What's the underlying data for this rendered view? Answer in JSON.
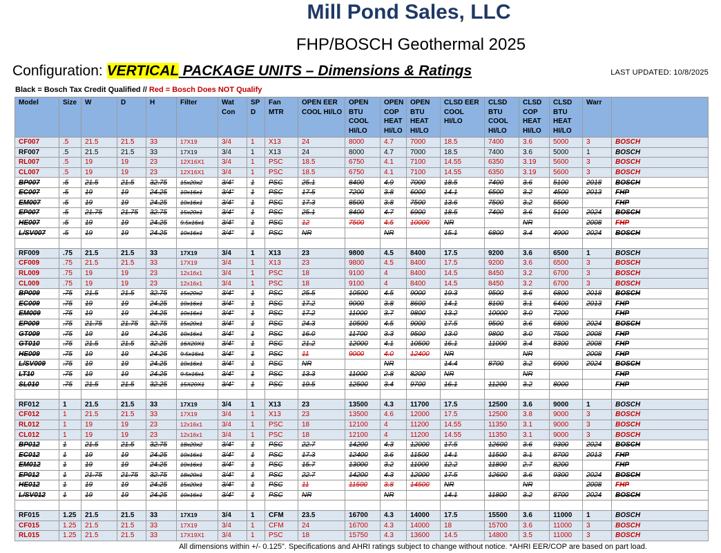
{
  "header": {
    "company": "Mill Pond Sales, LLC",
    "subtitle": "FHP/BOSCH Geothermal 2025",
    "config_prefix": "Configuration: ",
    "config_highlight": "VERTICAL",
    "config_suffix": " PACKAGE UNITS – Dimensions & Ratings",
    "last_updated": "LAST UPDATED: 10/8/2025",
    "legend_black": "Black = Bosch Tax Credit Qualified // ",
    "legend_red": "Red = Bosch Does NOT Qualify"
  },
  "columns": [
    "Model",
    "Size",
    "W",
    "D",
    "H",
    "Filter",
    "Wat Con",
    "SP D",
    "Fan MTR",
    "OPEN EER COOL HI/LO",
    "OPEN BTU COOL HI/LO",
    "OPEN COP HEAT HI/LO",
    "OPEN BTU HEAT HI/LO",
    "CLSD EER COOL HI/LO",
    "CLSD BTU COOL HI/LO",
    "CLSD COP HEAT HI/LO",
    "CLSD BTU HEAT HI/LO",
    "Warr",
    ""
  ],
  "rows": [
    {
      "style": "blue red",
      "cells": [
        "CF007",
        ".5",
        "21.5",
        "21.5",
        "33",
        "17X19",
        "3/4",
        "1",
        "X13",
        "24",
        "8000",
        "4.7",
        "7000",
        "18.5",
        "7400",
        "3.6",
        "5000",
        "3",
        "BOSCH"
      ]
    },
    {
      "style": "blue",
      "cells": [
        "RF007",
        ".5",
        "21.5",
        "21.5",
        "33",
        "17X19",
        "3/4",
        "1",
        "X13",
        "24",
        "8000",
        "4.7",
        "7000",
        "18.5",
        "7400",
        "3.6",
        "5000",
        "1",
        "BOSCH"
      ]
    },
    {
      "style": "blue red",
      "cells": [
        "RL007",
        ".5",
        "19",
        "19",
        "23",
        "12X16X1",
        "3/4",
        "1",
        "PSC",
        "18.5",
        "6750",
        "4.1",
        "7100",
        "14.55",
        "6350",
        "3.19",
        "5600",
        "3",
        "BOSCH"
      ]
    },
    {
      "style": "blue red",
      "cells": [
        "CL007",
        ".5",
        "19",
        "19",
        "23",
        "12X16X1",
        "3/4",
        "1",
        "PSC",
        "18.5",
        "6750",
        "4.1",
        "7100",
        "14.55",
        "6350",
        "3.19",
        "5600",
        "3",
        "BOSCH"
      ]
    },
    {
      "style": "strike",
      "cells": [
        "BP007",
        ".5",
        "21.5",
        "21.5",
        "32.75",
        "15x20x2",
        "3/4\"",
        "1",
        "PSC",
        "25.1",
        "8400",
        "4.9",
        "7000",
        "18.5",
        "7400",
        "3.6",
        "5100",
        "2018",
        "BOSCH"
      ]
    },
    {
      "style": "strike",
      "cells": [
        "EC007",
        ".5",
        "19",
        "19",
        "24.25",
        "10x16x1",
        "3/4\"",
        "1",
        "PSC",
        "17.5",
        "7200",
        "3.8",
        "6000",
        "14.1",
        "6500",
        "3.2",
        "4500",
        "2013",
        "FHP"
      ]
    },
    {
      "style": "strike",
      "cells": [
        "EM007",
        ".5",
        "19",
        "19",
        "24.25",
        "10x16x1",
        "3/4\"",
        "1",
        "PSC",
        "17.3",
        "8500",
        "3.8",
        "7500",
        "13.6",
        "7500",
        "3.2",
        "5500",
        "",
        "FHP"
      ]
    },
    {
      "style": "strike",
      "cells": [
        "EP007",
        ".5",
        "21.75",
        "21.75",
        "32.75",
        "15x20x1",
        "3/4\"",
        "1",
        "PSC",
        "25.1",
        "8400",
        "4.7",
        "6900",
        "18.5",
        "7400",
        "3.6",
        "5100",
        "2024",
        "BOSCH"
      ]
    },
    {
      "style": "strike",
      "red": [
        9,
        10,
        11,
        12,
        18
      ],
      "cells": [
        "HE007",
        ".5",
        "19",
        "19",
        "24.25",
        "9.5x16x1",
        "3/4\"",
        "1",
        "PSC",
        "12",
        "7500",
        "4.5",
        "10000",
        "NR",
        "",
        "NR",
        "",
        "2008",
        "FHP"
      ]
    },
    {
      "style": "strike",
      "cells": [
        "L/SV007",
        ".5",
        "19",
        "19",
        "24.25",
        "10x16x1",
        "3/4\"",
        "1",
        "PSC",
        "NR",
        "",
        "NR",
        "",
        "15.1",
        "6800",
        "3.4",
        "4900",
        "2024",
        "BOSCH"
      ]
    },
    {
      "style": "blank",
      "cells": [
        "",
        "",
        "",
        "",
        "",
        "",
        "",
        "",
        "",
        "",
        "",
        "",
        "",
        "",
        "",
        "",
        "",
        "",
        ""
      ]
    },
    {
      "style": "blue bold",
      "cells": [
        "RF009",
        ".75",
        "21.5",
        "21.5",
        "33",
        "17X19",
        "3/4",
        "1",
        "X13",
        "23",
        "9800",
        "4.5",
        "8400",
        "17.5",
        "9200",
        "3.6",
        "6500",
        "1",
        "BOSCH"
      ]
    },
    {
      "style": "blue red",
      "cells": [
        "CF009",
        ".75",
        "21.5",
        "21.5",
        "33",
        "17X19",
        "3/4",
        "1",
        "X13",
        "23",
        "9800",
        "4.5",
        "8400",
        "17.5",
        "9200",
        "3.6",
        "6500",
        "3",
        "BOSCH"
      ]
    },
    {
      "style": "blue red",
      "cells": [
        "RL009",
        ".75",
        "19",
        "19",
        "23",
        "12x16x1",
        "3/4",
        "1",
        "PSC",
        "18",
        "9100",
        "4",
        "8400",
        "14.5",
        "8450",
        "3.2",
        "6700",
        "3",
        "BOSCH"
      ]
    },
    {
      "style": "blue red",
      "cells": [
        "CL009",
        ".75",
        "19",
        "19",
        "23",
        "12x16x1",
        "3/4",
        "1",
        "PSC",
        "18",
        "9100",
        "4",
        "8400",
        "14.5",
        "8450",
        "3.2",
        "6700",
        "3",
        "BOSCH"
      ]
    },
    {
      "style": "strike",
      "cells": [
        "BP009",
        ".75",
        "21.5",
        "21.5",
        "32.75",
        "15x20x2",
        "3/4\"",
        "1",
        "PSC",
        "25.5",
        "10500",
        "4.5",
        "9000",
        "19.3",
        "9500",
        "3.6",
        "6800",
        "2018",
        "BOSCH"
      ]
    },
    {
      "style": "strike",
      "cells": [
        "EC009",
        ".75",
        "19",
        "19",
        "24.25",
        "10x16x1",
        "3/4\"",
        "1",
        "PSC",
        "17.2",
        "9000",
        "3.8",
        "8600",
        "14.1",
        "8100",
        "3.1",
        "6400",
        "2013",
        "FHP"
      ]
    },
    {
      "style": "strike",
      "cells": [
        "EM009",
        ".75",
        "19",
        "19",
        "24.25",
        "10x16x1",
        "3/4\"",
        "1",
        "PSC",
        "17.2",
        "11000",
        "3.7",
        "9800",
        "13.2",
        "10000",
        "3.0",
        "7200",
        "",
        "FHP"
      ]
    },
    {
      "style": "strike",
      "cells": [
        "EP009",
        ".75",
        "21.75",
        "21.75",
        "32.75",
        "15x20x1",
        "3/4\"",
        "1",
        "PSC",
        "24.3",
        "10500",
        "4.5",
        "9000",
        "17.5",
        "9500",
        "3.6",
        "6800",
        "2024",
        "BOSCH"
      ]
    },
    {
      "style": "strike",
      "cells": [
        "GT009",
        ".75",
        "19",
        "19",
        "24.25",
        "10x16x1",
        "3/4\"",
        "1",
        "PSC",
        "16.0",
        "11700",
        "3.3",
        "9500",
        "13.0",
        "9800",
        "3.0",
        "7500",
        "2008",
        "FHP"
      ]
    },
    {
      "style": "strike",
      "cells": [
        "GT010",
        ".75",
        "21.5",
        "21.5",
        "32.25",
        "16X20X1",
        "3/4\"",
        "1",
        "PSC",
        "21.2",
        "12000",
        "4.1",
        "10500",
        "16.1",
        "11000",
        "3.4",
        "8300",
        "2008",
        "FHP"
      ]
    },
    {
      "style": "strike",
      "red": [
        9,
        10,
        11,
        12
      ],
      "cells": [
        "HE009",
        ".75",
        "19",
        "19",
        "24.25",
        "9.5x16x1",
        "3/4\"",
        "1",
        "PSC",
        "11",
        "9000",
        "4.0",
        "12400",
        "NR",
        "",
        "NR",
        "",
        "2008",
        "FHP"
      ]
    },
    {
      "style": "strike",
      "cells": [
        "L/SV009",
        ".75",
        "19",
        "19",
        "24.25",
        "10x16x1",
        "3/4\"",
        "1",
        "PSC",
        "NR",
        "",
        "NR",
        "",
        "14.4",
        "8700",
        "3.2",
        "6900",
        "2024",
        "BOSCH"
      ]
    },
    {
      "style": "strike",
      "cells": [
        "LT10",
        ".75",
        "19",
        "19",
        "24.25",
        "9.5x16x1",
        "3/4\"",
        "1",
        "PSC",
        "13.3",
        "11000",
        "2.8",
        "8200",
        "NR",
        "",
        "NR",
        "",
        "",
        "FHP"
      ]
    },
    {
      "style": "strike",
      "cells": [
        "SL010",
        ".75",
        "21.5",
        "21.5",
        "32.25",
        "15X20X1",
        "3/4\"",
        "1",
        "PSC",
        "19.5",
        "12500",
        "3.4",
        "9700",
        "16.1",
        "11200",
        "3.2",
        "8000",
        "",
        "FHP"
      ]
    },
    {
      "style": "blank",
      "cells": [
        "",
        "",
        "",
        "",
        "",
        "",
        "",
        "",
        "",
        "",
        "",
        "",
        "",
        "",
        "",
        "",
        "",
        "",
        ""
      ]
    },
    {
      "style": "blue bold",
      "cells": [
        "RF012",
        "1",
        "21.5",
        "21.5",
        "33",
        "17X19",
        "3/4",
        "1",
        "X13",
        "23",
        "13500",
        "4.3",
        "11700",
        "17.5",
        "12500",
        "3.6",
        "9000",
        "1",
        "BOSCH"
      ]
    },
    {
      "style": "blue red",
      "cells": [
        "CF012",
        "1",
        "21.5",
        "21.5",
        "33",
        "17X19",
        "3/4",
        "1",
        "X13",
        "23",
        "13500",
        "4.6",
        "12000",
        "17.5",
        "12500",
        "3.8",
        "9000",
        "3",
        "BOSCH"
      ]
    },
    {
      "style": "blue red",
      "cells": [
        "RL012",
        "1",
        "19",
        "19",
        "23",
        "12x16x1",
        "3/4",
        "1",
        "PSC",
        "18",
        "12100",
        "4",
        "11200",
        "14.55",
        "11350",
        "3.1",
        "9000",
        "3",
        "BOSCH"
      ]
    },
    {
      "style": "blue red",
      "cells": [
        "CL012",
        "1",
        "19",
        "19",
        "23",
        "12x16x1",
        "3/4",
        "1",
        "PSC",
        "18",
        "12100",
        "4",
        "11200",
        "14.55",
        "11350",
        "3.1",
        "9000",
        "3",
        "BOSCH"
      ]
    },
    {
      "style": "strike",
      "cells": [
        "BP012",
        "1",
        "21.5",
        "21.5",
        "32.75",
        "18x20x2",
        "3/4\"",
        "1",
        "PSC",
        "22.7",
        "14200",
        "4.3",
        "12000",
        "17.5",
        "12600",
        "3.6",
        "9300",
        "2024",
        "BOSCH"
      ]
    },
    {
      "style": "strike",
      "cells": [
        "EC012",
        "1",
        "19",
        "19",
        "24.25",
        "10x16x1",
        "3/4\"",
        "1",
        "PSC",
        "17.3",
        "12400",
        "3.6",
        "11500",
        "14.1",
        "11500",
        "3.1",
        "8700",
        "2013",
        "FHP"
      ]
    },
    {
      "style": "strike",
      "cells": [
        "EM012",
        "1",
        "19",
        "19",
        "24.25",
        "10x16x1",
        "3/4\"",
        "1",
        "PSC",
        "15.7",
        "13000",
        "3.2",
        "11000",
        "12.2",
        "11800",
        "2.7",
        "8200",
        "",
        "FHP"
      ]
    },
    {
      "style": "strike",
      "cells": [
        "EP012",
        "1",
        "21.75",
        "21.75",
        "32.75",
        "18x20x1",
        "3/4\"",
        "1",
        "PSC",
        "22.7",
        "14200",
        "4.3",
        "12000",
        "17.5",
        "12600",
        "3.6",
        "9300",
        "2024",
        "BOSCH"
      ]
    },
    {
      "style": "strike",
      "red": [
        9,
        10,
        11,
        12,
        18
      ],
      "cells": [
        "HE012",
        "1",
        "19",
        "19",
        "24.25",
        "15x20x1",
        "3/4\"",
        "1",
        "PSC",
        "11",
        "11500",
        "3.8",
        "14500",
        "NR",
        "",
        "NR",
        "",
        "2008",
        "FHP"
      ]
    },
    {
      "style": "strike",
      "cells": [
        "L/SV012",
        "1",
        "19",
        "19",
        "24.25",
        "10x16x1",
        "3/4\"",
        "1",
        "PSC",
        "NR",
        "",
        "NR",
        "",
        "14.1",
        "11800",
        "3.2",
        "8700",
        "2024",
        "BOSCH"
      ]
    },
    {
      "style": "blank",
      "cells": [
        "",
        "",
        "",
        "",
        "",
        "",
        "",
        "",
        "",
        "",
        "",
        "",
        "",
        "",
        "",
        "",
        "",
        "",
        ""
      ]
    },
    {
      "style": "blue bold",
      "cells": [
        "RF015",
        "1.25",
        "21.5",
        "21.5",
        "33",
        "17X19",
        "3/4",
        "1",
        "CFM",
        "23.5",
        "16700",
        "4.3",
        "14000",
        "17.5",
        "15500",
        "3.6",
        "11000",
        "1",
        "BOSCH"
      ]
    },
    {
      "style": "blue red",
      "cells": [
        "CF015",
        "1.25",
        "21.5",
        "21.5",
        "33",
        "17X19",
        "3/4",
        "1",
        "CFM",
        "24",
        "16700",
        "4.3",
        "14000",
        "18",
        "15700",
        "3.6",
        "11000",
        "3",
        "BOSCH"
      ]
    },
    {
      "style": "blue red",
      "cells": [
        "RL015",
        "1.25",
        "21.5",
        "21.5",
        "33",
        "17X19X1",
        "3/4",
        "1",
        "PSC",
        "18",
        "15750",
        "4.3",
        "13600",
        "14.5",
        "14800",
        "3.5",
        "11000",
        "3",
        "BOSCH"
      ]
    }
  ],
  "footer": "All dimensions within +/- 0.125\".  Specifications and AHRI ratings subject to change without notice.  *AHRI EER/COP are based on part load."
}
